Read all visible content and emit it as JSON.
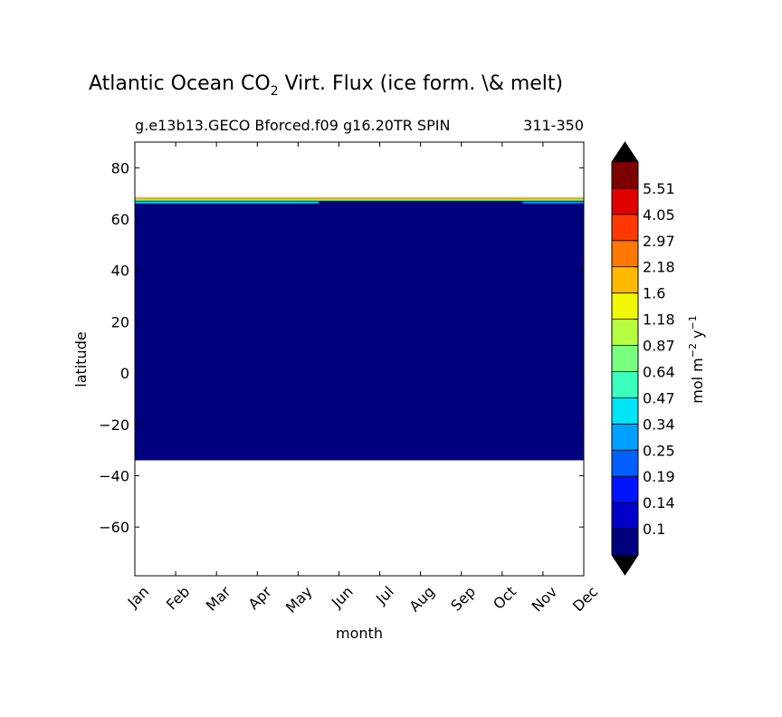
{
  "chart_data": {
    "type": "heatmap",
    "title": "Atlantic Ocean CO",
    "title_subscript": "2",
    "title_rest": " Virt. Flux (ice form. \\& melt)",
    "subtitle_left": "g.e13b13.GECO Bforced.f09 g16.20TR SPIN",
    "subtitle_right": "311-350",
    "xlabel": "month",
    "ylabel": "latitude",
    "x_categories": [
      "Jan",
      "Feb",
      "Mar",
      "Apr",
      "May",
      "Jun",
      "Jul",
      "Aug",
      "Sep",
      "Oct",
      "Nov",
      "Dec"
    ],
    "ylim": [
      -79,
      90
    ],
    "y_ticks": [
      80,
      60,
      40,
      20,
      0,
      -20,
      -40,
      -60
    ],
    "data_extent_lat": [
      -34,
      68.5
    ],
    "colorbar": {
      "label": "mol m",
      "label_sup1": "−2",
      "label_mid": " y",
      "label_sup2": "−1",
      "ticks": [
        "0.1",
        "0.14",
        "0.19",
        "0.25",
        "0.34",
        "0.47",
        "0.64",
        "0.87",
        "1.18",
        "1.6",
        "2.18",
        "2.97",
        "4.05",
        "5.51"
      ],
      "colors": [
        "#00007f",
        "#0000c8",
        "#0014ff",
        "#0060ff",
        "#00a0ff",
        "#00e4f8",
        "#3affbc",
        "#78ff7e",
        "#b6ff41",
        "#f0f804",
        "#ffba00",
        "#ff7800",
        "#ff3800",
        "#e00000",
        "#7f0000"
      ],
      "under_color": "#000000",
      "over_color": "#000000"
    },
    "background_value_color": "#00007f",
    "high_latitude_features": [
      {
        "lat": 68.2,
        "months": [
          0,
          11
        ],
        "color": "#ffba00",
        "note": "thin band at northern edge"
      },
      {
        "lat": 67.5,
        "months": [
          0,
          11
        ],
        "color": "#78ff7e"
      },
      {
        "lat": 66.5,
        "months": [
          0,
          4.5
        ],
        "color": "#00e4f8"
      },
      {
        "lat": 66.5,
        "months": [
          9.5,
          11
        ],
        "color": "#00a0ff"
      }
    ]
  }
}
